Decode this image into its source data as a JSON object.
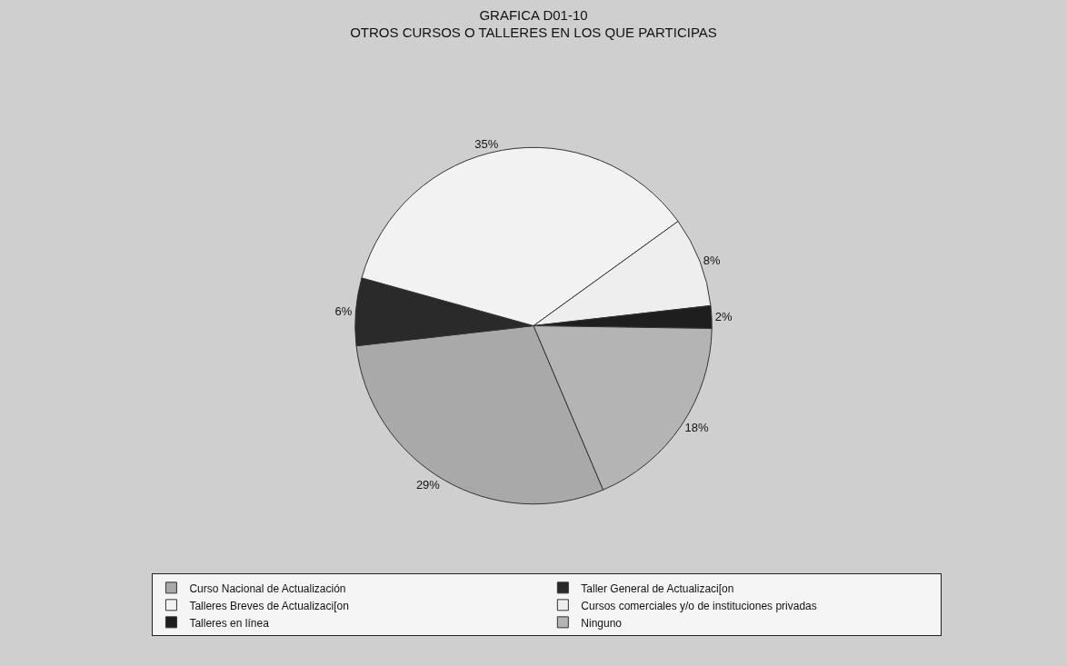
{
  "chart_data": {
    "type": "pie",
    "title": "GRAFICA D01-10\nOTROS CURSOS O TALLERES EN LOS QUE PARTICIPAS",
    "categories": [
      "Curso Nacional de Actualización",
      "Taller General de Actualizaci[on",
      "Talleres Breves de Actualizaci[on",
      "Cursos comerciales y/o de instituciones privadas",
      "Talleres en línea",
      "Ninguno"
    ],
    "values": [
      29,
      6,
      35,
      8,
      2,
      18
    ],
    "value_labels": [
      "29%",
      "6%",
      "35%",
      "8%",
      "2%",
      "18%"
    ],
    "colors": [
      "#a9a9a9",
      "#2a2a2a",
      "#f2f2f2",
      "#eeeeee",
      "#1e1e1e",
      "#b4b4b4"
    ],
    "legend": "bottom"
  }
}
